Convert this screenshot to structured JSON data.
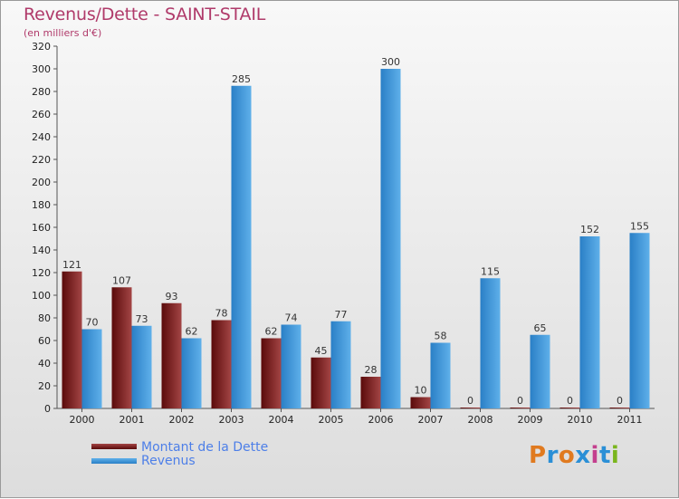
{
  "title": "Revenus/Dette - SAINT-STAIL",
  "subtitle": "(en milliers d'€)",
  "legend": {
    "debt_label": "Montant de la Dette",
    "revenue_label": "Revenus"
  },
  "logo": {
    "text": "Proxiti",
    "letter_colors": [
      "#e07a1f",
      "#2a8fd6",
      "#e07a1f",
      "#2a8fd6",
      "#c43f8e",
      "#2a8fd6",
      "#7ab51d"
    ]
  },
  "colors": {
    "debt_dark": "#5a0a0a",
    "debt_light": "#a34545",
    "revenue_dark": "#2a7fc6",
    "revenue_light": "#5fb0ea",
    "title": "#b03a6a",
    "legend_text": "#4d7fe8"
  },
  "chart_data": {
    "type": "bar",
    "categories": [
      "2000",
      "2001",
      "2002",
      "2003",
      "2004",
      "2005",
      "2006",
      "2007",
      "2008",
      "2009",
      "2010",
      "2011"
    ],
    "series": [
      {
        "name": "Montant de la Dette",
        "values": [
          121,
          107,
          93,
          78,
          62,
          45,
          28,
          10,
          0,
          0,
          0,
          0
        ]
      },
      {
        "name": "Revenus",
        "values": [
          70,
          73,
          62,
          285,
          74,
          77,
          300,
          58,
          115,
          65,
          152,
          155
        ]
      }
    ],
    "title": "Revenus/Dette - SAINT-STAIL",
    "subtitle": "(en milliers d'€)",
    "ylim": [
      0,
      320
    ],
    "yticks": [
      0,
      20,
      40,
      60,
      80,
      100,
      120,
      140,
      160,
      180,
      200,
      220,
      240,
      260,
      280,
      300,
      320
    ],
    "grid": false,
    "legend_position": "bottom-left"
  }
}
